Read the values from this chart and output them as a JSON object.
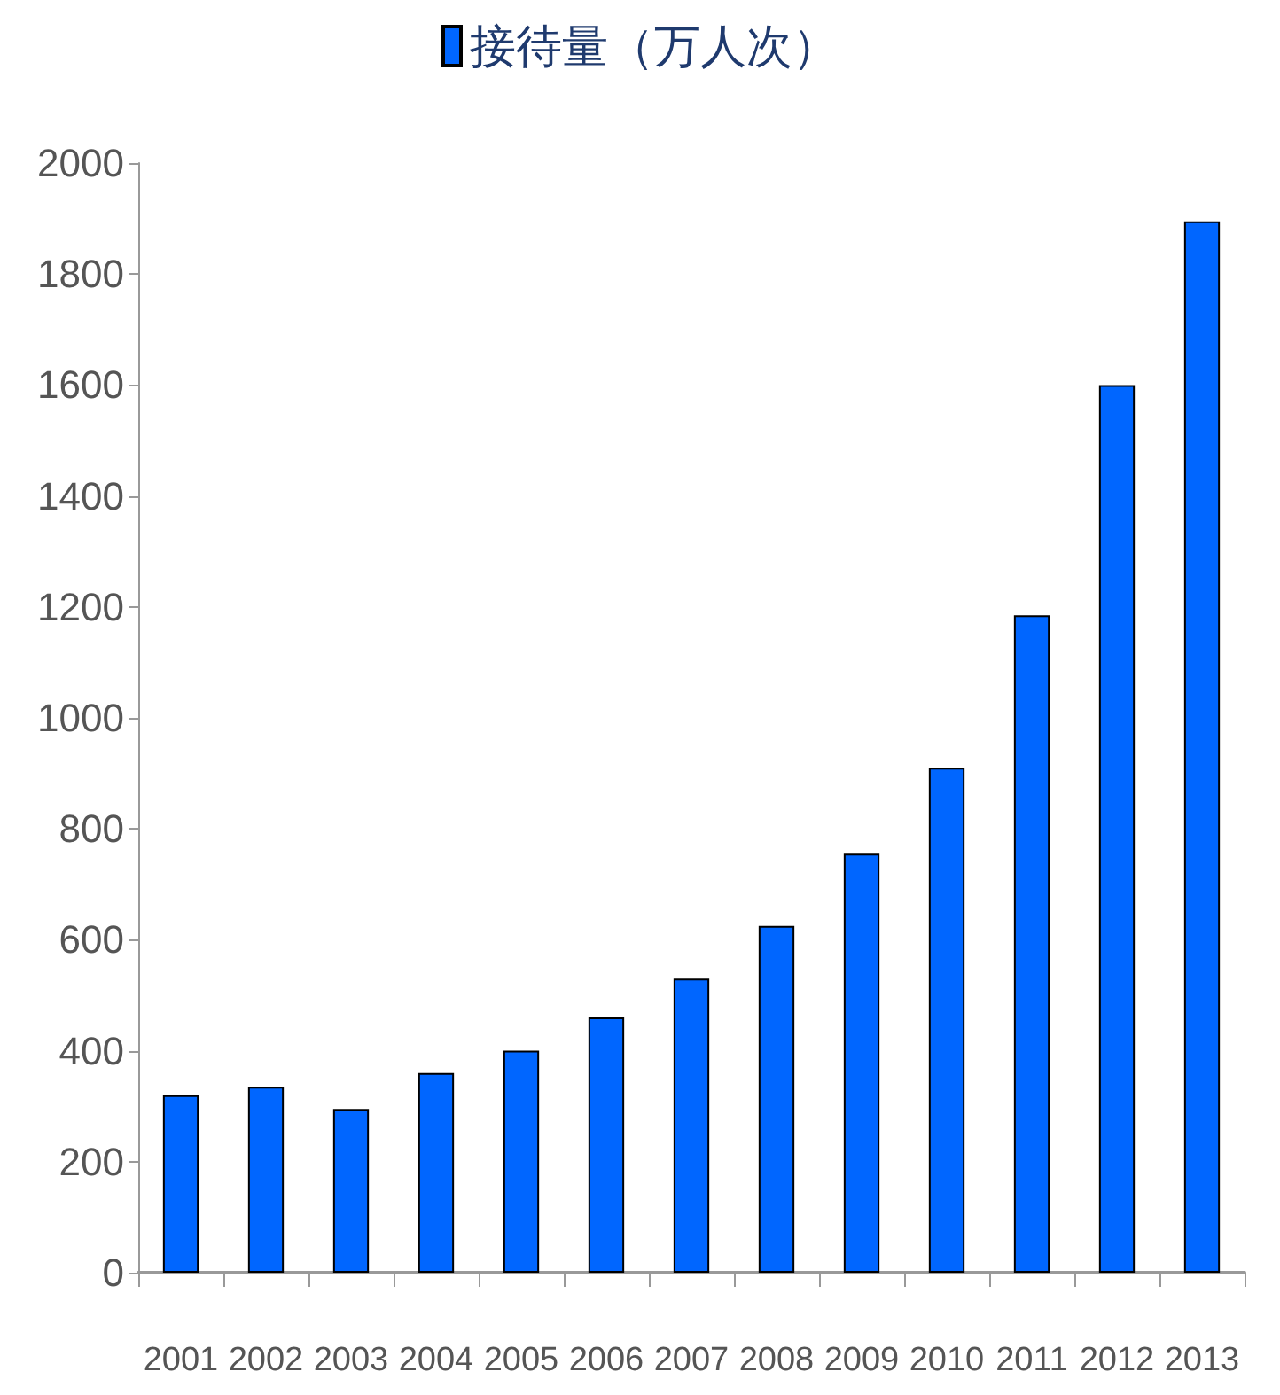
{
  "chart_data": {
    "type": "bar",
    "categories": [
      "2001",
      "2002",
      "2003",
      "2004",
      "2005",
      "2006",
      "2007",
      "2008",
      "2009",
      "2010",
      "2011",
      "2012",
      "2013"
    ],
    "series": [
      {
        "name": "接待量（万人次）",
        "color": "#0066ff",
        "values": [
          320,
          335,
          295,
          360,
          400,
          460,
          530,
          625,
          755,
          910,
          1185,
          1600,
          1895
        ]
      }
    ],
    "ylim": [
      0,
      2000
    ],
    "yticks": [
      0,
      200,
      400,
      600,
      800,
      1000,
      1200,
      1400,
      1600,
      1800,
      2000
    ],
    "grid": false,
    "legend": "top"
  }
}
